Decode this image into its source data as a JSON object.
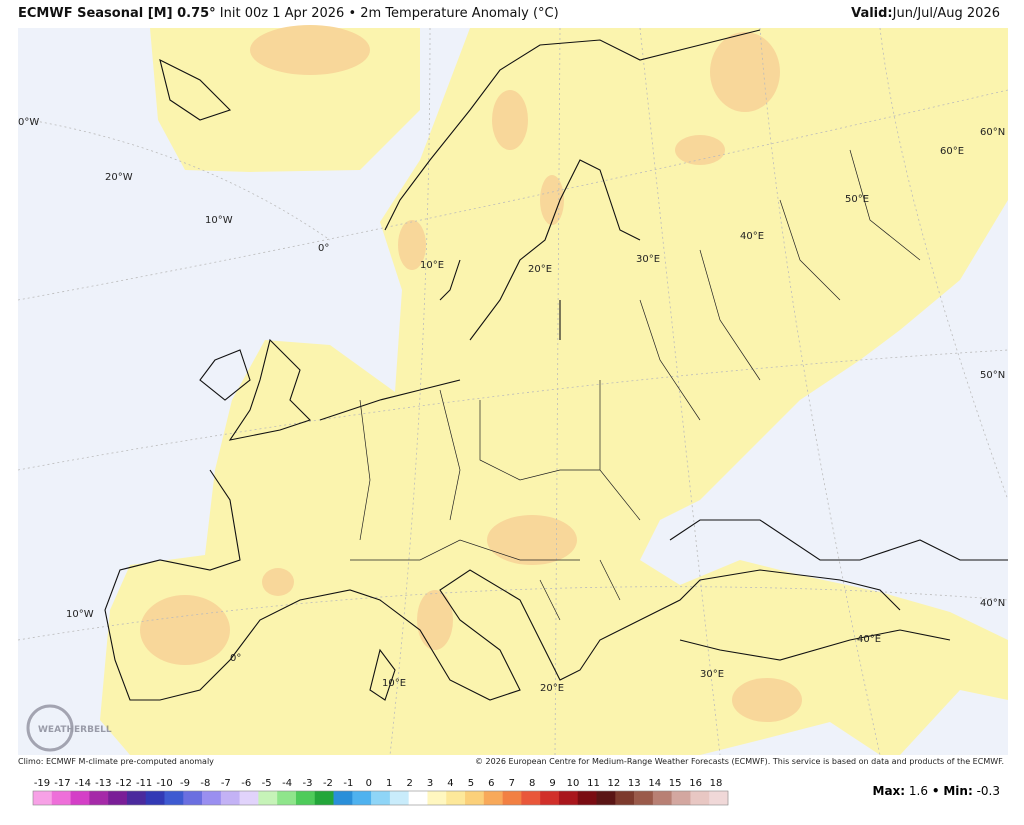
{
  "header": {
    "title_bold": "ECMWF Seasonal [M] 0.75°",
    "title_rest": "Init 00z 1 Apr 2026 • 2m Temperature Anomaly (°C)",
    "valid_label": "Valid:",
    "valid_value": "Jun/Jul/Aug 2026"
  },
  "map_labels": [
    "0°W",
    "20°W",
    "10°W",
    "0°",
    "10°E",
    "20°E",
    "30°E",
    "40°E",
    "50°E",
    "60°E",
    "60°N",
    "50°N",
    "40°N",
    "10°W",
    "0°",
    "10°E",
    "20°E",
    "30°E",
    "40°E"
  ],
  "logo": "WEATHERBELL",
  "footer": {
    "climo": "Climo: ECMWF M-climate pre-computed anomaly",
    "copyright": "© 2026 European Centre for Medium-Range Weather Forecasts (ECMWF). This service is based on data and products of the ECMWF."
  },
  "colorbar_labels": [
    -19,
    -17,
    -14,
    -13,
    -12,
    -11,
    -10,
    -9,
    -8,
    -7,
    -6,
    -5,
    -4,
    -3,
    -2,
    -1,
    0,
    1,
    2,
    3,
    4,
    5,
    6,
    7,
    8,
    9,
    10,
    11,
    12,
    13,
    14,
    15,
    16,
    18
  ],
  "stats": {
    "max_label": "Max:",
    "max": 1.6,
    "separator": "•",
    "min_label": "Min:",
    "min": -0.3
  }
}
